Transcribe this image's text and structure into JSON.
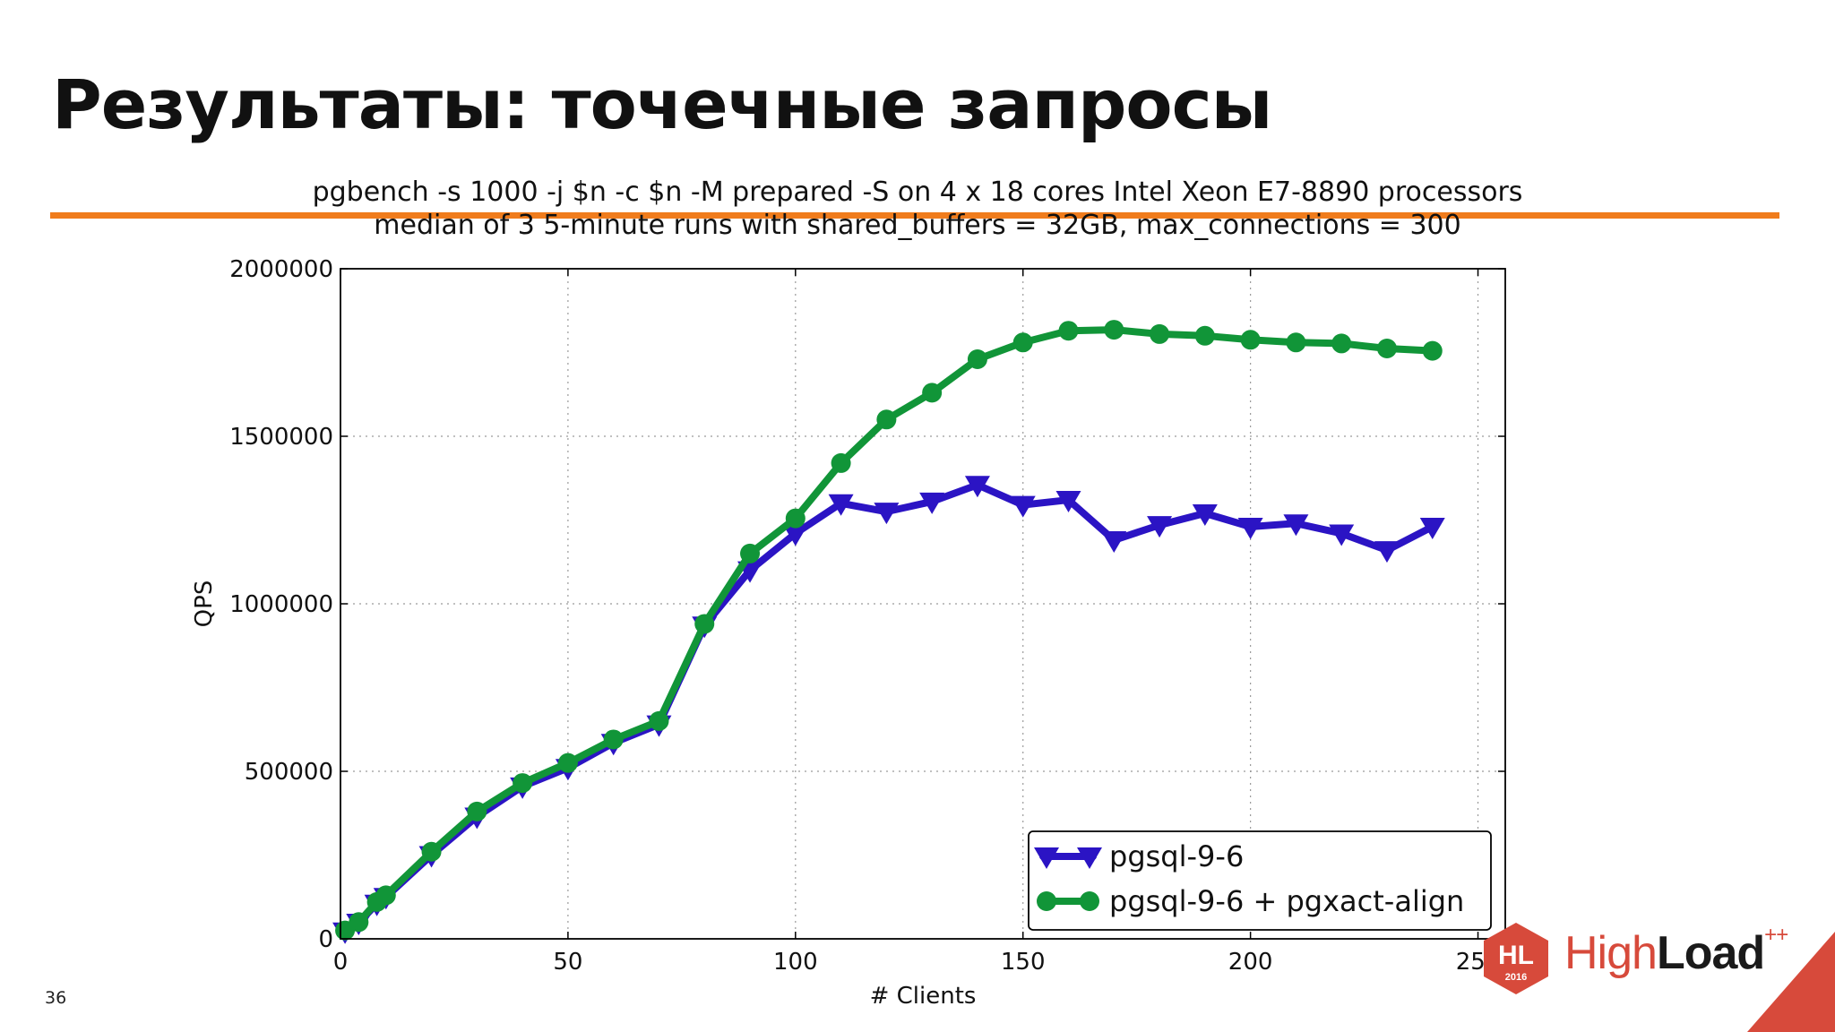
{
  "slide": {
    "title": "Результаты: точечные запросы",
    "page_number": "36",
    "accent_color": "#f07c1c"
  },
  "logo": {
    "mark_text": "HL",
    "mark_year": "2016",
    "word_light": "High",
    "word_bold": "Load",
    "word_sup": "++",
    "brand_color": "#d74a3b"
  },
  "chart_data": {
    "type": "line",
    "title": "pgbench -s 1000 -j $n -c $n -M prepared -S on 4 x 18 cores Intel Xeon E7-8890 processors",
    "subtitle": "median of 3 5-minute runs with shared_buffers = 32GB, max_connections = 300",
    "xlabel": "# Clients",
    "ylabel": "QPS",
    "xlim": [
      0,
      256
    ],
    "ylim": [
      0,
      2000000
    ],
    "xticks": [
      0,
      50,
      100,
      150,
      200,
      250
    ],
    "xtick_labels": [
      "0",
      "50",
      "100",
      "150",
      "200",
      "250"
    ],
    "yticks": [
      0,
      500000,
      1000000,
      1500000,
      2000000
    ],
    "ytick_labels": [
      "0",
      "500000",
      "1000000",
      "1500000",
      "2000000"
    ],
    "grid": true,
    "legend_position": "bottom-right",
    "series": [
      {
        "name": "pgsql-9-6",
        "color": "#2b14c4",
        "marker": "triangle-down",
        "x": [
          1,
          4,
          8,
          10,
          20,
          30,
          40,
          50,
          60,
          70,
          80,
          90,
          100,
          110,
          120,
          130,
          140,
          150,
          160,
          170,
          180,
          190,
          200,
          210,
          220,
          230,
          240
        ],
        "y": [
          22000,
          48000,
          105000,
          125000,
          250000,
          365000,
          455000,
          510000,
          585000,
          640000,
          935000,
          1100000,
          1210000,
          1300000,
          1275000,
          1305000,
          1355000,
          1295000,
          1310000,
          1190000,
          1235000,
          1270000,
          1230000,
          1240000,
          1210000,
          1160000,
          1230000
        ]
      },
      {
        "name": "pgsql-9-6 + pgxact-align",
        "color": "#119538",
        "marker": "circle",
        "x": [
          1,
          4,
          8,
          10,
          20,
          30,
          40,
          50,
          60,
          70,
          80,
          90,
          100,
          110,
          120,
          130,
          140,
          150,
          160,
          170,
          180,
          190,
          200,
          210,
          220,
          230,
          240
        ],
        "y": [
          25000,
          50000,
          110000,
          130000,
          260000,
          380000,
          465000,
          525000,
          595000,
          650000,
          940000,
          1150000,
          1255000,
          1420000,
          1550000,
          1630000,
          1730000,
          1780000,
          1815000,
          1818000,
          1805000,
          1800000,
          1788000,
          1780000,
          1777000,
          1762000,
          1755000
        ]
      }
    ]
  }
}
